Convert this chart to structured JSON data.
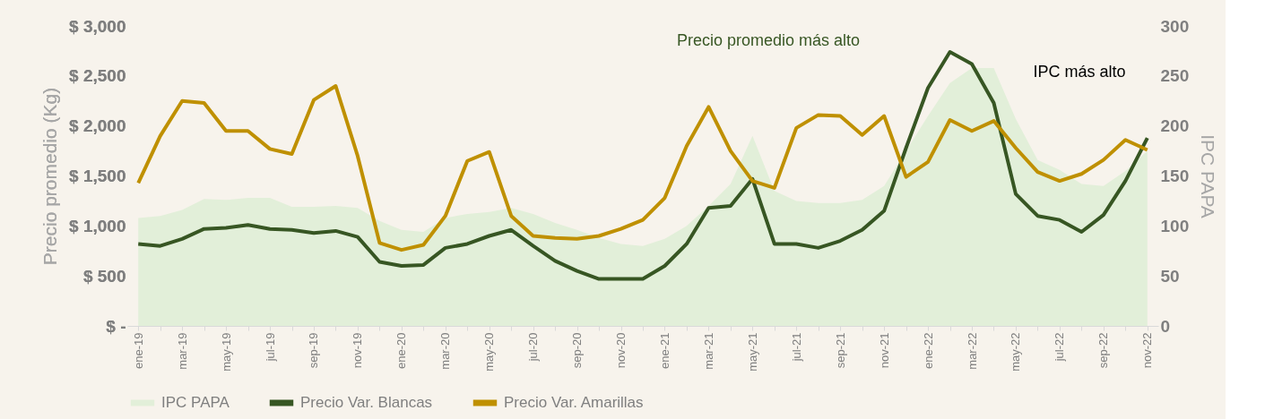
{
  "chart_data": {
    "type": "line",
    "categories": [
      "ene-19",
      null,
      "mar-19",
      null,
      "may-19",
      null,
      "jul-19",
      null,
      "sep-19",
      null,
      "nov-19",
      null,
      "ene-20",
      null,
      "mar-20",
      null,
      "may-20",
      null,
      "jul-20",
      null,
      "sep-20",
      null,
      "nov-20",
      null,
      "ene-21",
      null,
      "mar-21",
      null,
      "may-21",
      null,
      "jul-21",
      null,
      "sep-21",
      null,
      "nov-21",
      null,
      "ene-22",
      null,
      "mar-22",
      null,
      "may-22",
      null,
      "jul-22",
      null,
      "sep-22",
      null,
      "nov-22"
    ],
    "series": [
      {
        "name": "IPC PAPA",
        "type": "area",
        "axis": "y2",
        "color": "#e2efd9",
        "values": [
          108,
          110,
          116,
          127,
          126,
          128,
          128,
          119,
          119,
          120,
          118,
          105,
          96,
          94,
          108,
          112,
          114,
          118,
          112,
          103,
          96,
          88,
          82,
          80,
          87,
          100,
          120,
          142,
          190,
          135,
          125,
          123,
          123,
          126,
          140,
          175,
          210,
          243,
          258,
          258,
          207,
          166,
          156,
          142,
          140,
          155,
          175
        ]
      },
      {
        "name": "Precio Var. Blancas",
        "color": "#375623",
        "values": [
          820,
          800,
          870,
          970,
          980,
          1010,
          970,
          960,
          930,
          950,
          890,
          640,
          600,
          610,
          780,
          820,
          900,
          960,
          800,
          650,
          550,
          470,
          470,
          470,
          600,
          820,
          1180,
          1200,
          1470,
          820,
          820,
          780,
          850,
          960,
          1150,
          1780,
          2380,
          2740,
          2620,
          2230,
          1320,
          1100,
          1060,
          940,
          1110,
          1450,
          1880
        ]
      },
      {
        "name": "Precio Var. Amarillas",
        "color": "#bf9000",
        "values": [
          1430,
          1900,
          2250,
          2230,
          1950,
          1950,
          1770,
          1720,
          2260,
          2400,
          1700,
          830,
          760,
          810,
          1100,
          1650,
          1740,
          1100,
          900,
          880,
          870,
          900,
          970,
          1060,
          1280,
          1800,
          2190,
          1750,
          1450,
          1380,
          1980,
          2110,
          2100,
          1910,
          2100,
          1490,
          1640,
          2060,
          1950,
          2050,
          1780,
          1540,
          1450,
          1520,
          1660,
          1860,
          1760
        ]
      }
    ],
    "ylabel": "Precio promedio (Kg)",
    "y2label": "IPC PAPA",
    "ylim": [
      0,
      3000
    ],
    "yticks": [
      {
        "value": 0,
        "label": "$ -"
      },
      {
        "value": 500,
        "label": "$ 500"
      },
      {
        "value": 1000,
        "label": "$ 1,000"
      },
      {
        "value": 1500,
        "label": "$ 1,500"
      },
      {
        "value": 2000,
        "label": "$ 2,000"
      },
      {
        "value": 2500,
        "label": "$ 2,500"
      },
      {
        "value": 3000,
        "label": "$ 3,000"
      }
    ],
    "y2lim": [
      0,
      300
    ],
    "y2ticks": [
      0,
      50,
      100,
      150,
      200,
      250,
      300
    ],
    "annotations": [
      "Precio promedio más alto",
      "IPC más alto"
    ],
    "grid": false,
    "legend": "bottom"
  }
}
